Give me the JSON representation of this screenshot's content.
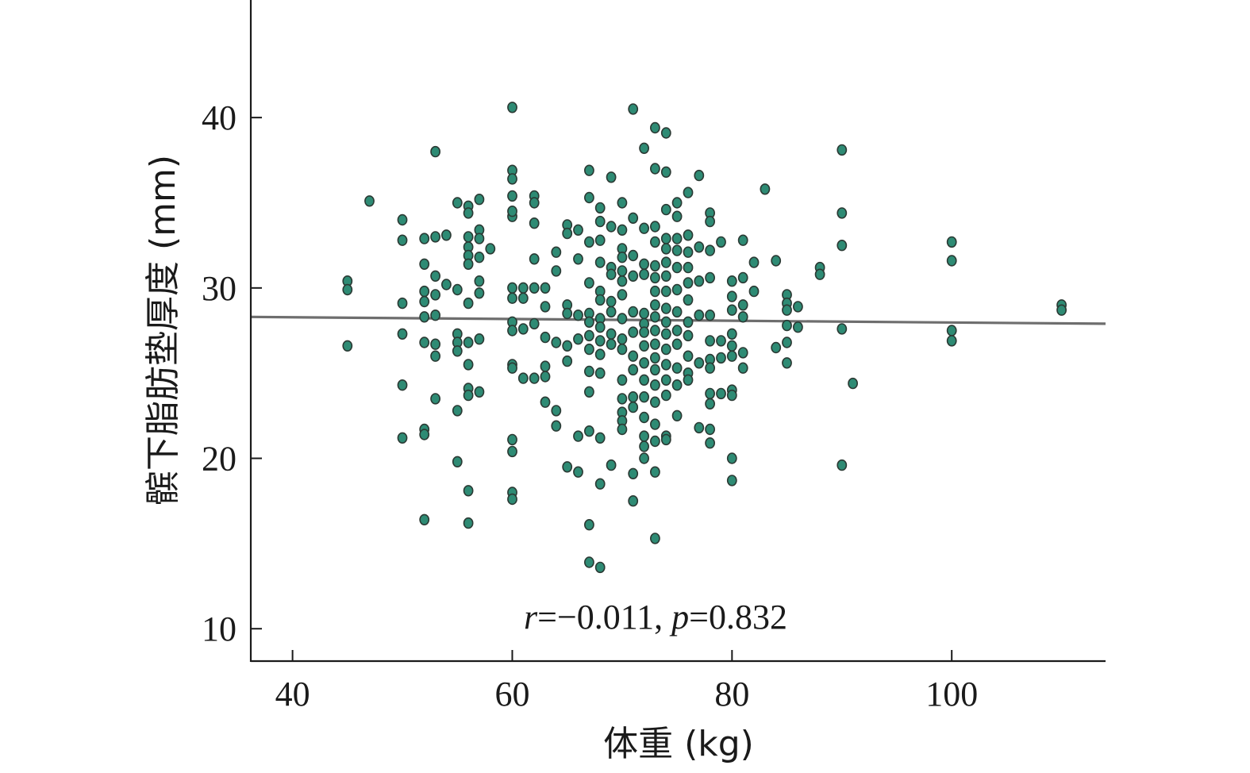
{
  "chart_data": {
    "type": "scatter",
    "xlabel": "体重 (kg)",
    "ylabel": "髌下脂肪垫厚度 (mm)",
    "xlim": [
      36.2,
      114
    ],
    "ylim": [
      8.1,
      46.9
    ],
    "xticks": [
      40,
      60,
      80,
      100
    ],
    "yticks": [
      10,
      20,
      30,
      40
    ],
    "xtick_labels": [
      "40",
      "60",
      "80",
      "100"
    ],
    "ytick_labels": [
      "10",
      "20",
      "30",
      "40"
    ],
    "annotation": {
      "r_label": "r",
      "r_value": "=−0.011, ",
      "p_label": "p",
      "p_value": "=0.832"
    },
    "fit_line": {
      "x": [
        36.2,
        114
      ],
      "y": [
        28.3,
        27.9
      ]
    },
    "grid": false,
    "colors": {
      "points": "#2e8b74",
      "point_outline": "#2b3a34",
      "fit_line": "#555555",
      "axis": "#1a1a1a"
    },
    "points": [
      [
        45,
        30.4
      ],
      [
        45,
        29.9
      ],
      [
        45,
        26.6
      ],
      [
        47,
        35.1
      ],
      [
        50,
        34.0
      ],
      [
        50,
        32.8
      ],
      [
        50,
        29.1
      ],
      [
        50,
        27.3
      ],
      [
        50,
        24.3
      ],
      [
        50,
        21.2
      ],
      [
        52,
        32.9
      ],
      [
        52,
        31.4
      ],
      [
        52,
        29.8
      ],
      [
        52,
        29.2
      ],
      [
        52,
        28.3
      ],
      [
        52,
        26.8
      ],
      [
        52,
        21.7
      ],
      [
        52,
        21.4
      ],
      [
        52,
        16.4
      ],
      [
        53,
        38.0
      ],
      [
        53,
        33.0
      ],
      [
        53,
        30.7
      ],
      [
        53,
        29.6
      ],
      [
        53,
        28.4
      ],
      [
        53,
        26.0
      ],
      [
        53,
        23.5
      ],
      [
        53,
        26.7
      ],
      [
        54,
        33.1
      ],
      [
        54,
        30.2
      ],
      [
        55,
        35.0
      ],
      [
        55,
        29.9
      ],
      [
        55,
        27.3
      ],
      [
        55,
        26.8
      ],
      [
        55,
        26.3
      ],
      [
        55,
        22.8
      ],
      [
        55,
        19.8
      ],
      [
        56,
        34.8
      ],
      [
        56,
        34.4
      ],
      [
        56,
        33.0
      ],
      [
        56,
        32.4
      ],
      [
        56,
        31.9
      ],
      [
        56,
        31.4
      ],
      [
        56,
        29.1
      ],
      [
        56,
        26.8
      ],
      [
        56,
        25.5
      ],
      [
        56,
        24.1
      ],
      [
        56,
        23.7
      ],
      [
        56,
        18.1
      ],
      [
        56,
        16.2
      ],
      [
        57,
        35.2
      ],
      [
        57,
        33.4
      ],
      [
        57,
        32.9
      ],
      [
        57,
        31.8
      ],
      [
        57,
        30.4
      ],
      [
        57,
        29.7
      ],
      [
        57,
        27.0
      ],
      [
        57,
        23.9
      ],
      [
        58,
        32.3
      ],
      [
        60,
        40.6
      ],
      [
        60,
        36.9
      ],
      [
        60,
        36.4
      ],
      [
        60,
        35.4
      ],
      [
        60,
        34.2
      ],
      [
        60,
        34.5
      ],
      [
        60,
        30.0
      ],
      [
        60,
        29.4
      ],
      [
        60,
        28.0
      ],
      [
        60,
        27.5
      ],
      [
        60,
        25.5
      ],
      [
        60,
        25.3
      ],
      [
        60,
        21.1
      ],
      [
        60,
        20.4
      ],
      [
        60,
        18.0
      ],
      [
        60,
        17.6
      ],
      [
        61,
        30.0
      ],
      [
        61,
        29.4
      ],
      [
        61,
        27.6
      ],
      [
        61,
        24.7
      ],
      [
        62,
        35.4
      ],
      [
        62,
        35.0
      ],
      [
        62,
        33.8
      ],
      [
        62,
        31.7
      ],
      [
        62,
        30.0
      ],
      [
        62,
        27.9
      ],
      [
        62,
        24.7
      ],
      [
        63,
        30.0
      ],
      [
        63,
        28.9
      ],
      [
        63,
        27.1
      ],
      [
        63,
        25.4
      ],
      [
        63,
        24.8
      ],
      [
        63,
        23.3
      ],
      [
        64,
        32.1
      ],
      [
        64,
        31.0
      ],
      [
        64,
        26.8
      ],
      [
        64,
        22.8
      ],
      [
        64,
        21.9
      ],
      [
        65,
        33.7
      ],
      [
        65,
        33.2
      ],
      [
        65,
        29.0
      ],
      [
        65,
        28.5
      ],
      [
        65,
        26.6
      ],
      [
        65,
        25.7
      ],
      [
        65,
        19.5
      ],
      [
        66,
        33.4
      ],
      [
        66,
        31.7
      ],
      [
        66,
        28.4
      ],
      [
        66,
        27.0
      ],
      [
        66,
        21.3
      ],
      [
        66,
        19.2
      ],
      [
        67,
        36.9
      ],
      [
        67,
        35.3
      ],
      [
        67,
        32.7
      ],
      [
        67,
        30.3
      ],
      [
        67,
        28.5
      ],
      [
        67,
        28.0
      ],
      [
        67,
        27.2
      ],
      [
        67,
        26.4
      ],
      [
        67,
        25.1
      ],
      [
        67,
        23.9
      ],
      [
        67,
        21.6
      ],
      [
        67,
        16.1
      ],
      [
        67,
        13.9
      ],
      [
        68,
        34.7
      ],
      [
        68,
        33.9
      ],
      [
        68,
        32.8
      ],
      [
        68,
        31.5
      ],
      [
        68,
        29.8
      ],
      [
        68,
        29.3
      ],
      [
        68,
        28.2
      ],
      [
        68,
        27.7
      ],
      [
        68,
        26.9
      ],
      [
        68,
        26.1
      ],
      [
        68,
        25.0
      ],
      [
        68,
        21.2
      ],
      [
        68,
        18.5
      ],
      [
        68,
        13.6
      ],
      [
        69,
        36.5
      ],
      [
        69,
        33.6
      ],
      [
        69,
        31.2
      ],
      [
        69,
        30.8
      ],
      [
        69,
        29.2
      ],
      [
        69,
        28.6
      ],
      [
        69,
        27.3
      ],
      [
        69,
        26.7
      ],
      [
        69,
        19.6
      ],
      [
        70,
        35.0
      ],
      [
        70,
        33.4
      ],
      [
        70,
        32.3
      ],
      [
        70,
        31.8
      ],
      [
        70,
        31.0
      ],
      [
        70,
        30.4
      ],
      [
        70,
        29.6
      ],
      [
        70,
        28.2
      ],
      [
        70,
        27.0
      ],
      [
        70,
        26.4
      ],
      [
        70,
        24.6
      ],
      [
        70,
        23.5
      ],
      [
        70,
        22.7
      ],
      [
        70,
        22.2
      ],
      [
        70,
        21.7
      ],
      [
        71,
        40.5
      ],
      [
        71,
        34.1
      ],
      [
        71,
        31.9
      ],
      [
        71,
        30.7
      ],
      [
        71,
        28.6
      ],
      [
        71,
        27.4
      ],
      [
        71,
        26.0
      ],
      [
        71,
        25.2
      ],
      [
        71,
        23.6
      ],
      [
        71,
        23.0
      ],
      [
        71,
        19.1
      ],
      [
        71,
        17.5
      ],
      [
        72,
        38.2
      ],
      [
        72,
        33.5
      ],
      [
        72,
        31.4
      ],
      [
        72,
        30.8
      ],
      [
        72,
        28.5
      ],
      [
        72,
        27.9
      ],
      [
        72,
        27.4
      ],
      [
        72,
        26.6
      ],
      [
        72,
        25.6
      ],
      [
        72,
        24.6
      ],
      [
        72,
        23.6
      ],
      [
        72,
        22.4
      ],
      [
        72,
        21.3
      ],
      [
        72,
        20.7
      ],
      [
        72,
        20.0
      ],
      [
        73,
        39.4
      ],
      [
        73,
        37.0
      ],
      [
        73,
        33.6
      ],
      [
        73,
        32.7
      ],
      [
        73,
        31.3
      ],
      [
        73,
        30.6
      ],
      [
        73,
        29.8
      ],
      [
        73,
        29.0
      ],
      [
        73,
        28.3
      ],
      [
        73,
        27.5
      ],
      [
        73,
        26.7
      ],
      [
        73,
        25.9
      ],
      [
        73,
        25.2
      ],
      [
        73,
        24.3
      ],
      [
        73,
        23.3
      ],
      [
        73,
        22.0
      ],
      [
        73,
        21.0
      ],
      [
        73,
        19.2
      ],
      [
        73,
        15.3
      ],
      [
        74,
        39.1
      ],
      [
        74,
        36.8
      ],
      [
        74,
        34.6
      ],
      [
        74,
        32.9
      ],
      [
        74,
        32.3
      ],
      [
        74,
        31.5
      ],
      [
        74,
        30.7
      ],
      [
        74,
        29.8
      ],
      [
        74,
        28.8
      ],
      [
        74,
        28.0
      ],
      [
        74,
        27.3
      ],
      [
        74,
        26.4
      ],
      [
        74,
        25.5
      ],
      [
        74,
        24.6
      ],
      [
        74,
        23.7
      ],
      [
        74,
        21.3
      ],
      [
        74,
        21.1
      ],
      [
        75,
        35.0
      ],
      [
        75,
        34.2
      ],
      [
        75,
        32.9
      ],
      [
        75,
        32.2
      ],
      [
        75,
        31.2
      ],
      [
        75,
        29.9
      ],
      [
        75,
        28.6
      ],
      [
        75,
        27.5
      ],
      [
        75,
        26.7
      ],
      [
        75,
        25.3
      ],
      [
        75,
        24.3
      ],
      [
        75,
        22.5
      ],
      [
        76,
        35.6
      ],
      [
        76,
        33.1
      ],
      [
        76,
        32.1
      ],
      [
        76,
        31.2
      ],
      [
        76,
        30.3
      ],
      [
        76,
        29.3
      ],
      [
        76,
        28.0
      ],
      [
        76,
        27.2
      ],
      [
        76,
        26.0
      ],
      [
        76,
        25.0
      ],
      [
        76,
        24.6
      ],
      [
        77,
        36.6
      ],
      [
        77,
        32.4
      ],
      [
        77,
        30.4
      ],
      [
        77,
        28.4
      ],
      [
        77,
        25.6
      ],
      [
        77,
        21.8
      ],
      [
        78,
        34.4
      ],
      [
        78,
        33.9
      ],
      [
        78,
        32.2
      ],
      [
        78,
        30.6
      ],
      [
        78,
        28.4
      ],
      [
        78,
        26.9
      ],
      [
        78,
        25.8
      ],
      [
        78,
        25.3
      ],
      [
        78,
        23.8
      ],
      [
        78,
        23.2
      ],
      [
        78,
        21.7
      ],
      [
        78,
        20.9
      ],
      [
        79,
        32.7
      ],
      [
        79,
        26.9
      ],
      [
        79,
        25.9
      ],
      [
        79,
        23.8
      ],
      [
        80,
        30.4
      ],
      [
        80,
        29.5
      ],
      [
        80,
        28.7
      ],
      [
        80,
        27.3
      ],
      [
        80,
        26.6
      ],
      [
        80,
        26.0
      ],
      [
        80,
        24.0
      ],
      [
        80,
        23.7
      ],
      [
        80,
        20.0
      ],
      [
        80,
        18.7
      ],
      [
        81,
        32.8
      ],
      [
        81,
        30.6
      ],
      [
        81,
        29.0
      ],
      [
        81,
        28.3
      ],
      [
        81,
        26.2
      ],
      [
        81,
        25.3
      ],
      [
        82,
        31.5
      ],
      [
        82,
        29.8
      ],
      [
        83,
        35.8
      ],
      [
        84,
        31.6
      ],
      [
        84,
        26.5
      ],
      [
        85,
        29.6
      ],
      [
        85,
        29.1
      ],
      [
        85,
        28.7
      ],
      [
        85,
        27.8
      ],
      [
        85,
        26.8
      ],
      [
        85,
        25.6
      ],
      [
        86,
        28.9
      ],
      [
        86,
        27.7
      ],
      [
        88,
        31.2
      ],
      [
        88,
        30.8
      ],
      [
        90,
        38.1
      ],
      [
        90,
        34.4
      ],
      [
        90,
        32.5
      ],
      [
        90,
        27.6
      ],
      [
        90,
        19.6
      ],
      [
        91,
        24.4
      ],
      [
        100,
        32.7
      ],
      [
        100,
        31.6
      ],
      [
        100,
        27.5
      ],
      [
        100,
        26.9
      ],
      [
        110,
        29.0
      ],
      [
        110,
        28.7
      ]
    ]
  }
}
